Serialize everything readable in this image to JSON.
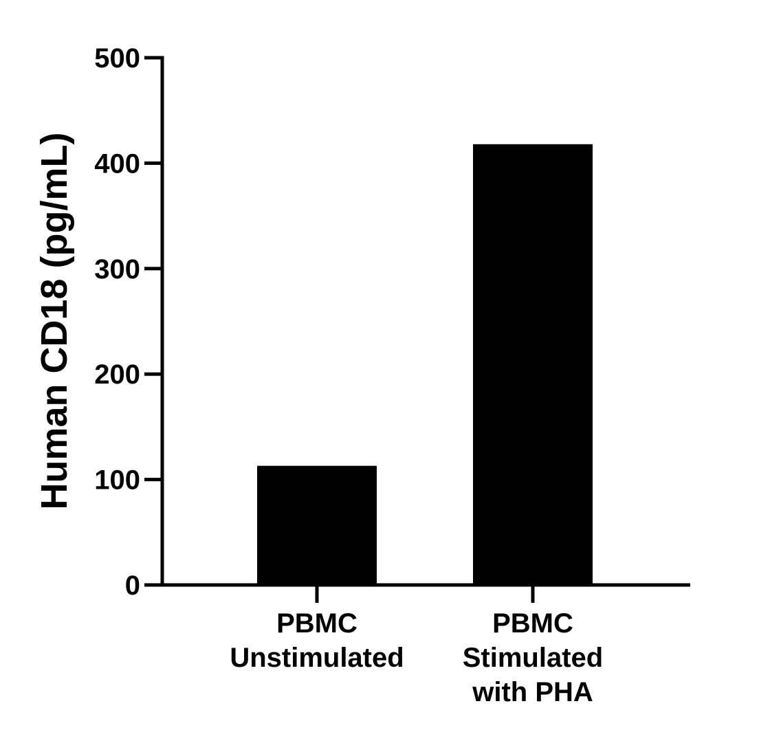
{
  "chart_data": {
    "type": "bar",
    "title": "",
    "xlabel": "",
    "ylabel": "Human CD18 (pg/mL)",
    "categories": [
      [
        "PBMC",
        "Unstimulated"
      ],
      [
        "PBMC",
        "Stimulated",
        "with PHA"
      ]
    ],
    "values": [
      113,
      418
    ],
    "ylim": [
      0,
      500
    ],
    "yticks": [
      0,
      100,
      200,
      300,
      400,
      500
    ],
    "grid": false,
    "legend": "none",
    "bar_color": "#000000",
    "axis_color": "#000000"
  }
}
